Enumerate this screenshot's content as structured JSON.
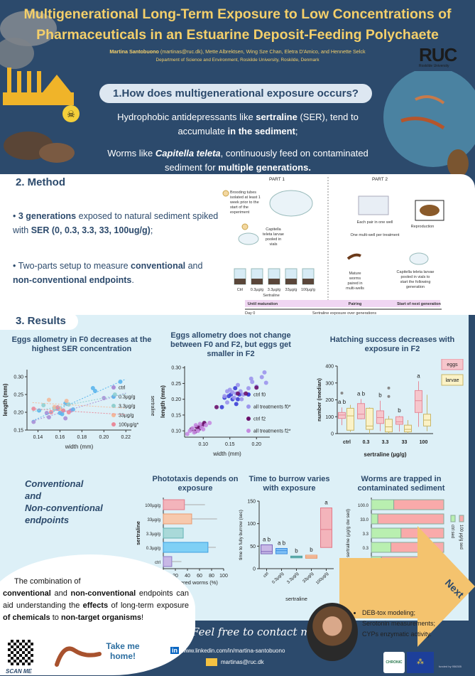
{
  "header": {
    "title_line1": "Multigenerational Long-Term Exposure to Low Concentrations of",
    "title_line2": "Pharmaceuticals in an Estuarine Deposit-Feeding Polychaete",
    "lead_author": "Martina Santobuono",
    "authors_rest": " (martinas@ruc.dk), Mette Albrektsen, Wing Sze Chan, Eletra D'Amico, and Hennette Selck",
    "department": "Department of Science and Environment, Roskilde University, Roskilde, Denmark",
    "logo": "RUC",
    "logo_sub": "Roskilde University"
  },
  "section1": {
    "title": "1.How does multigenerational exposure occurs?",
    "p1_a": "Hydrophobic antidepressants like ",
    "p1_b": "sertraline",
    "p1_c": " (SER), tend to accumulate ",
    "p1_d": "in the sediment",
    "p1_e": ";",
    "p2_a": "Worms like ",
    "p2_b": "Capitella teleta",
    "p2_c": ", continuously feed on contaminated sediment for ",
    "p2_d": "multiple generations."
  },
  "section2": {
    "title": "2. Method",
    "b1_a": "3 generations",
    "b1_b": " exposed to natural sediment spiked with ",
    "b1_c": "SER (0, 0.3, 3.3, 33, 100ug/g)",
    "b1_d": ";",
    "b2_a": "Two-parts setup to measure ",
    "b2_b": "conventional",
    "b2_c": " and ",
    "b2_d": "non-conventional endpoints",
    "b2_e": ".",
    "diagram": {
      "part1": "PART 1",
      "part2": "PART 2",
      "step1": [
        "Brooding tubes",
        "isolated at least 1",
        "week prior to the",
        "start of the",
        "experiment"
      ],
      "step2": [
        "Capitella",
        "teleta larvae",
        "pooled in",
        "vials"
      ],
      "beakers": [
        "Ctrl",
        "0.3µg/g",
        "3.3µg/g",
        "33µg/g",
        "100µg/g"
      ],
      "sertraline": "Sertraline",
      "step4": [
        "Mature",
        "worms",
        "paired in",
        "multi-wells"
      ],
      "well1": "Each pair in one well",
      "well2": "One multi-well per treatment",
      "step5": "Reproduction",
      "step6": [
        "Capitella teleta larvae",
        "pooled in vials to",
        "start the following",
        "generation"
      ],
      "phase1": "Until maturation",
      "phase2": "Pairing",
      "phase3": "Start of next generation",
      "day0": "Day 0",
      "axis": "Sertraline exposure over generations"
    }
  },
  "section3": {
    "title": "3. Results",
    "endpoints": [
      "Conventional",
      "and",
      "Non-conventional",
      "endpoints"
    ]
  },
  "chart_data": [
    {
      "type": "scatter",
      "title": "Eggs allometry in F0 decreases at the highest SER concentration",
      "xlabel": "width (mm)",
      "ylabel": "length (mm)",
      "xlim": [
        0.13,
        0.225
      ],
      "ylim": [
        0.15,
        0.32
      ],
      "xticks": [
        "0.14",
        "0.16",
        "0.18",
        "0.20",
        "0.22"
      ],
      "yticks": [
        "0.15",
        "0.20",
        "0.25",
        "0.30"
      ],
      "legend_title": "sertraline",
      "legend": "right",
      "series": [
        {
          "name": "ctrl",
          "color": "#a98fd6",
          "points": [
            [
              0.136,
              0.173
            ],
            [
              0.148,
              0.198
            ],
            [
              0.15,
              0.186
            ],
            [
              0.158,
              0.21
            ],
            [
              0.165,
              0.183
            ],
            [
              0.17,
              0.205
            ],
            [
              0.2,
              0.24
            ]
          ]
        },
        {
          "name": "0.3µg/g",
          "color": "#5bb5ec",
          "points": [
            [
              0.141,
              0.205
            ],
            [
              0.16,
              0.198
            ],
            [
              0.162,
              0.195
            ],
            [
              0.165,
              0.225
            ],
            [
              0.172,
              0.208
            ],
            [
              0.19,
              0.268
            ],
            [
              0.192,
              0.26
            ],
            [
              0.215,
              0.286
            ]
          ]
        },
        {
          "name": "3.3µg/g",
          "color": "#8fcfd0",
          "points": [
            [
              0.145,
              0.22
            ],
            [
              0.155,
              0.21
            ],
            [
              0.163,
              0.205
            ],
            [
              0.168,
              0.222
            ],
            [
              0.21,
              0.25
            ]
          ]
        },
        {
          "name": "33µg/g",
          "color": "#f2b99a",
          "points": [
            [
              0.15,
              0.235
            ],
            [
              0.155,
              0.215
            ],
            [
              0.16,
              0.21
            ],
            [
              0.166,
              0.232
            ]
          ]
        },
        {
          "name": "100µg/g*",
          "color": "#e98a9a",
          "points": [
            [
              0.136,
              0.21
            ],
            [
              0.152,
              0.2
            ],
            [
              0.158,
              0.214
            ],
            [
              0.163,
              0.205
            ],
            [
              0.168,
              0.2
            ]
          ]
        }
      ]
    },
    {
      "type": "scatter",
      "title": "Eggs allometry does not change between F0 and F2, but eggs get smaller in F2",
      "xlabel": "width (mm)",
      "ylabel": "length (mm)",
      "xlim": [
        0.065,
        0.225
      ],
      "ylim": [
        0.08,
        0.305
      ],
      "xticks": [
        "0.10",
        "0.15",
        "0.20"
      ],
      "yticks": [
        "0.10",
        "0.15",
        "0.20",
        "0.25",
        "0.30"
      ],
      "legend": "right",
      "series": [
        {
          "name": "ctrl f0",
          "color": "#3d3fd6",
          "points": [
            [
              0.135,
              0.175
            ],
            [
              0.14,
              0.205
            ],
            [
              0.148,
              0.21
            ],
            [
              0.152,
              0.215
            ],
            [
              0.155,
              0.2
            ],
            [
              0.16,
              0.235
            ],
            [
              0.162,
              0.185
            ],
            [
              0.165,
              0.2
            ],
            [
              0.168,
              0.215
            ]
          ]
        },
        {
          "name": "all treatments f0*",
          "color": "#9c95ec",
          "points": [
            [
              0.14,
              0.21
            ],
            [
              0.145,
              0.225
            ],
            [
              0.15,
              0.23
            ],
            [
              0.155,
              0.222
            ],
            [
              0.158,
              0.205
            ],
            [
              0.162,
              0.218
            ],
            [
              0.165,
              0.245
            ],
            [
              0.17,
              0.225
            ],
            [
              0.172,
              0.2
            ],
            [
              0.175,
              0.215
            ],
            [
              0.19,
              0.265
            ],
            [
              0.192,
              0.255
            ],
            [
              0.2,
              0.24
            ],
            [
              0.21,
              0.27
            ],
            [
              0.215,
              0.285
            ],
            [
              0.218,
              0.252
            ],
            [
              0.185,
              0.235
            ],
            [
              0.145,
              0.19
            ]
          ]
        },
        {
          "name": "ctrl f2",
          "color": "#6a0f6a",
          "points": [
            [
              0.078,
              0.105
            ],
            [
              0.085,
              0.098
            ],
            [
              0.088,
              0.112
            ],
            [
              0.092,
              0.106
            ],
            [
              0.095,
              0.115
            ],
            [
              0.1,
              0.12
            ],
            [
              0.102,
              0.125
            ],
            [
              0.125,
              0.175
            ],
            [
              0.165,
              0.218
            ],
            [
              0.18,
              0.218
            ],
            [
              0.2,
              0.237
            ]
          ]
        },
        {
          "name": "all treatments f2*",
          "color": "#c58be0",
          "points": [
            [
              0.07,
              0.09
            ],
            [
              0.075,
              0.1
            ],
            [
              0.08,
              0.108
            ],
            [
              0.083,
              0.095
            ],
            [
              0.086,
              0.118
            ],
            [
              0.09,
              0.1
            ],
            [
              0.094,
              0.122
            ],
            [
              0.097,
              0.11
            ],
            [
              0.105,
              0.118
            ],
            [
              0.112,
              0.125
            ],
            [
              0.1,
              0.105
            ]
          ]
        }
      ]
    },
    {
      "type": "box",
      "title": "Hatching success decreases with exposure in F2",
      "xlabel": "sertraline (µg/g)",
      "ylabel": "number (median)",
      "ylim": [
        0,
        400
      ],
      "yticks": [
        "0",
        "100",
        "200",
        "300",
        "400"
      ],
      "categories": [
        "ctrl",
        "0.3",
        "3.3",
        "33",
        "100"
      ],
      "legend": "top-right",
      "series": [
        {
          "name": "eggs",
          "color": "#f6c6cc",
          "stroke": "#e58a99",
          "boxes": [
            [
              50,
              90,
              110,
              125,
              155
            ],
            [
              85,
              88,
              115,
              178,
              205
            ],
            [
              15,
              60,
              95,
              135,
              195
            ],
            [
              12,
              55,
              70,
              100,
              105
            ],
            [
              40,
              125,
              195,
              255,
              310
            ]
          ]
        },
        {
          "name": "larvae",
          "color": "#fbf2c6",
          "stroke": "#c8b66a",
          "boxes": [
            [
              10,
              20,
              105,
              150,
              170
            ],
            [
              0,
              25,
              45,
              150,
              155
            ],
            [
              0,
              10,
              40,
              85,
              105
            ],
            [
              0,
              10,
              25,
              50,
              80
            ],
            [
              15,
              45,
              80,
              115,
              230
            ]
          ]
        }
      ],
      "outliers": [
        [
          0,
          240
        ],
        [
          2,
          270
        ],
        [
          2,
          220
        ]
      ],
      "letters": [
        "a b",
        "a b",
        "b",
        "b",
        "a"
      ]
    },
    {
      "type": "bar",
      "orientation": "horizontal",
      "title": "Phototaxis depends on exposure",
      "xlabel": "sheltered worms (%)",
      "ylabel": "sertraline",
      "xlim": [
        0,
        100
      ],
      "xticks": [
        "0",
        "20",
        "40",
        "60",
        "80",
        "100"
      ],
      "categories": [
        "100µg/g",
        "33µg/g",
        "3.3µg/g",
        "0.3µg/g",
        "ctrl"
      ],
      "values": [
        35,
        47,
        33,
        74,
        14
      ],
      "errors_upper": [
        69,
        89,
        null,
        87,
        30
      ],
      "colors": [
        "#f3b4bb",
        "#f7c9ad",
        "#a9d9d9",
        "#7fd0f5",
        "#c8b8e6"
      ],
      "strokes": [
        "#e27a89",
        "#e99a6f",
        "#62b3b3",
        "#3c9ee0",
        "#8c79c6"
      ]
    },
    {
      "type": "box",
      "title": "Time to burrow varies with exposure",
      "xlabel": "sertraline",
      "ylabel": "time to fully burrow (sec)",
      "ylim": [
        0,
        150
      ],
      "yticks": [
        "0",
        "50",
        "100",
        "150"
      ],
      "categories": [
        "ctrl",
        "0.3µg/g",
        "3.3µg/g",
        "33µg/g",
        "100µg/g"
      ],
      "boxes": [
        [
          33,
          38,
          53
        ],
        [
          33,
          40,
          45
        ],
        [
          24,
          26,
          28
        ],
        [
          23,
          26,
          30
        ],
        [
          47,
          87,
          135
        ]
      ],
      "letters": [
        "a b",
        "a b",
        "b",
        "b",
        "a"
      ],
      "colors": [
        "#c8b8e6",
        "#7fbff5",
        "#a9d9d9",
        "#f7c9ad",
        "#f3b4bb"
      ],
      "strokes": [
        "#7a63b8",
        "#3c8ee0",
        "#4aa0a0",
        "#e99a6f",
        "#e27a89"
      ]
    },
    {
      "type": "bar",
      "orientation": "horizontal",
      "stacked": true,
      "title": "Worms are trapped in contaminated sediment",
      "xlabel": "number of worms (%)",
      "ylabel": "sertraline (µg/g dw sed)",
      "xlim": [
        0,
        1
      ],
      "xticks": [
        "0.0",
        "0.5",
        "1.0"
      ],
      "categories": [
        "100.0",
        "33.0",
        "3.3",
        "0.3",
        "0.0"
      ],
      "series": [
        {
          "name": "ctrl sed",
          "color": "#b9efb0",
          "values": [
            0.31,
            0.09,
            0.41,
            0.27,
            0.14
          ]
        },
        {
          "name": "100 µg/g sed",
          "color": "#f9aaaa",
          "values": [
            0.69,
            0.91,
            0.59,
            0.73,
            0.86
          ]
        }
      ],
      "legend": "right"
    }
  ],
  "conclusion": {
    "a": "The combination of ",
    "b": "conventional",
    "c": " and ",
    "d": "non-conventional",
    "e": " endpoints can aid understanding the ",
    "f": "effects",
    "g": " of long-term exposure ",
    "h": "of chemicals",
    "i": " to ",
    "j": "non-target organisms",
    "k": "!"
  },
  "qr": {
    "label": "SCAN ME",
    "take_me": "Take me home!"
  },
  "contact": {
    "title": "Feel free to contact me!",
    "linkedin": "www.linkedin.com/in/martina-santobuono",
    "email": "martinas@ruc.dk"
  },
  "next": {
    "label": "Next",
    "items": [
      "DEB-tox modeling;",
      "Serotonin measurements;",
      "CYPs enzymatic activity."
    ]
  },
  "logos": {
    "chronic": "CHRONIC",
    "funding": "funded by 956305"
  },
  "colors": {
    "navy": "#2c4a6c",
    "yellow": "#f4cf6a",
    "lightblue": "#ddf0f7",
    "orange": "#f4c36e"
  }
}
